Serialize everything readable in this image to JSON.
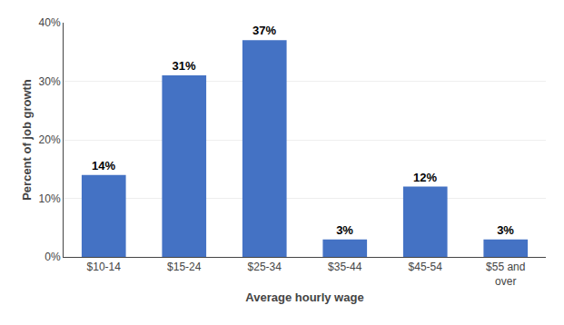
{
  "chart_data": {
    "type": "bar",
    "categories": [
      "$10-14",
      "$15-24",
      "$25-34",
      "$35-44",
      "$45-54",
      "$55 and\nover"
    ],
    "values": [
      14,
      31,
      37,
      3,
      12,
      3
    ],
    "value_labels": [
      "14%",
      "31%",
      "37%",
      "3%",
      "12%",
      "3%"
    ],
    "data_labels": true,
    "color": "#4472C4",
    "x_label": "Average hourly wage",
    "y_label": "Percent of job growth",
    "ylim": [
      0,
      40
    ],
    "yticks": [
      {
        "value": 0,
        "label": "0%"
      },
      {
        "value": 10,
        "label": "10%"
      },
      {
        "value": 20,
        "label": "20%"
      },
      {
        "value": 30,
        "label": "30%"
      },
      {
        "value": 40,
        "label": "40%"
      }
    ],
    "grid": true
  }
}
